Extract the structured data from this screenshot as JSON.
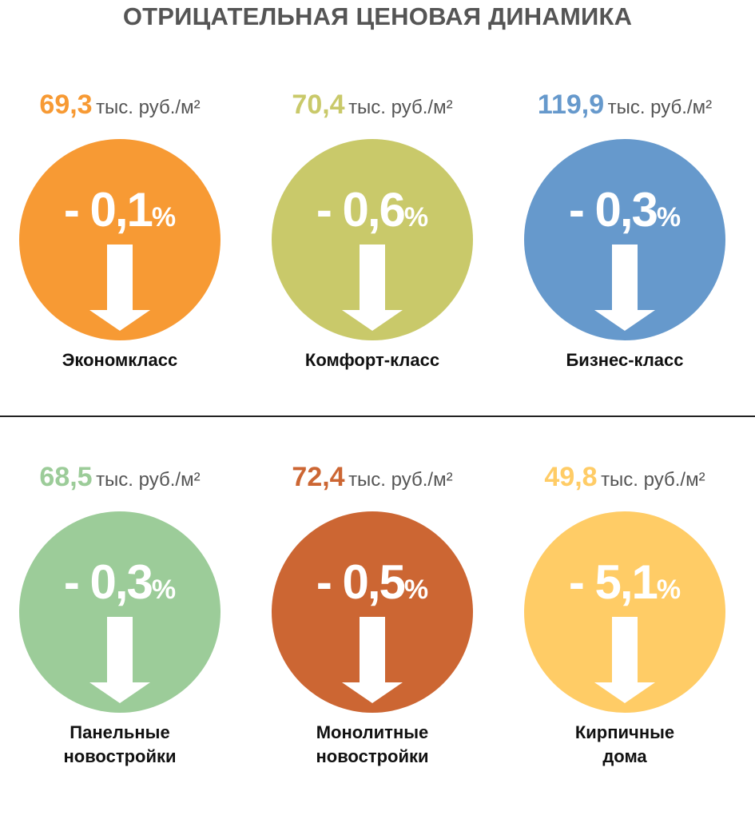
{
  "title": "ОТРИЦАТЕЛЬНАЯ ЦЕНОВАЯ ДИНАМИКА",
  "cards": [
    {
      "price": "69,3",
      "unit": "тыс. руб./м²",
      "change": "- 0,1",
      "percent_sign": "%",
      "label_line1": "Экономкласс",
      "label_line2": "",
      "color": "#f79a34"
    },
    {
      "price": "70,4",
      "unit": "тыс. руб./м²",
      "change": "- 0,6",
      "percent_sign": "%",
      "label_line1": "Комфорт-класс",
      "label_line2": "",
      "color": "#c9c96a"
    },
    {
      "price": "119,9",
      "unit": "тыс. руб./м²",
      "change": "- 0,3",
      "percent_sign": "%",
      "label_line1": "Бизнес-класс",
      "label_line2": "",
      "color": "#6699cc"
    },
    {
      "price": "68,5",
      "unit": "тыс. руб./м²",
      "change": "- 0,3",
      "percent_sign": "%",
      "label_line1": "Панельные",
      "label_line2": "новостройки",
      "color": "#9ccc99"
    },
    {
      "price": "72,4",
      "unit": "тыс. руб./м²",
      "change": "- 0,5",
      "percent_sign": "%",
      "label_line1": "Монолитные",
      "label_line2": "новостройки",
      "color": "#cc6633"
    },
    {
      "price": "49,8",
      "unit": "тыс. руб./м²",
      "change": "- 5,1",
      "percent_sign": "%",
      "label_line1": "Кирпичные",
      "label_line2": "дома",
      "color": "#ffcc66"
    }
  ]
}
